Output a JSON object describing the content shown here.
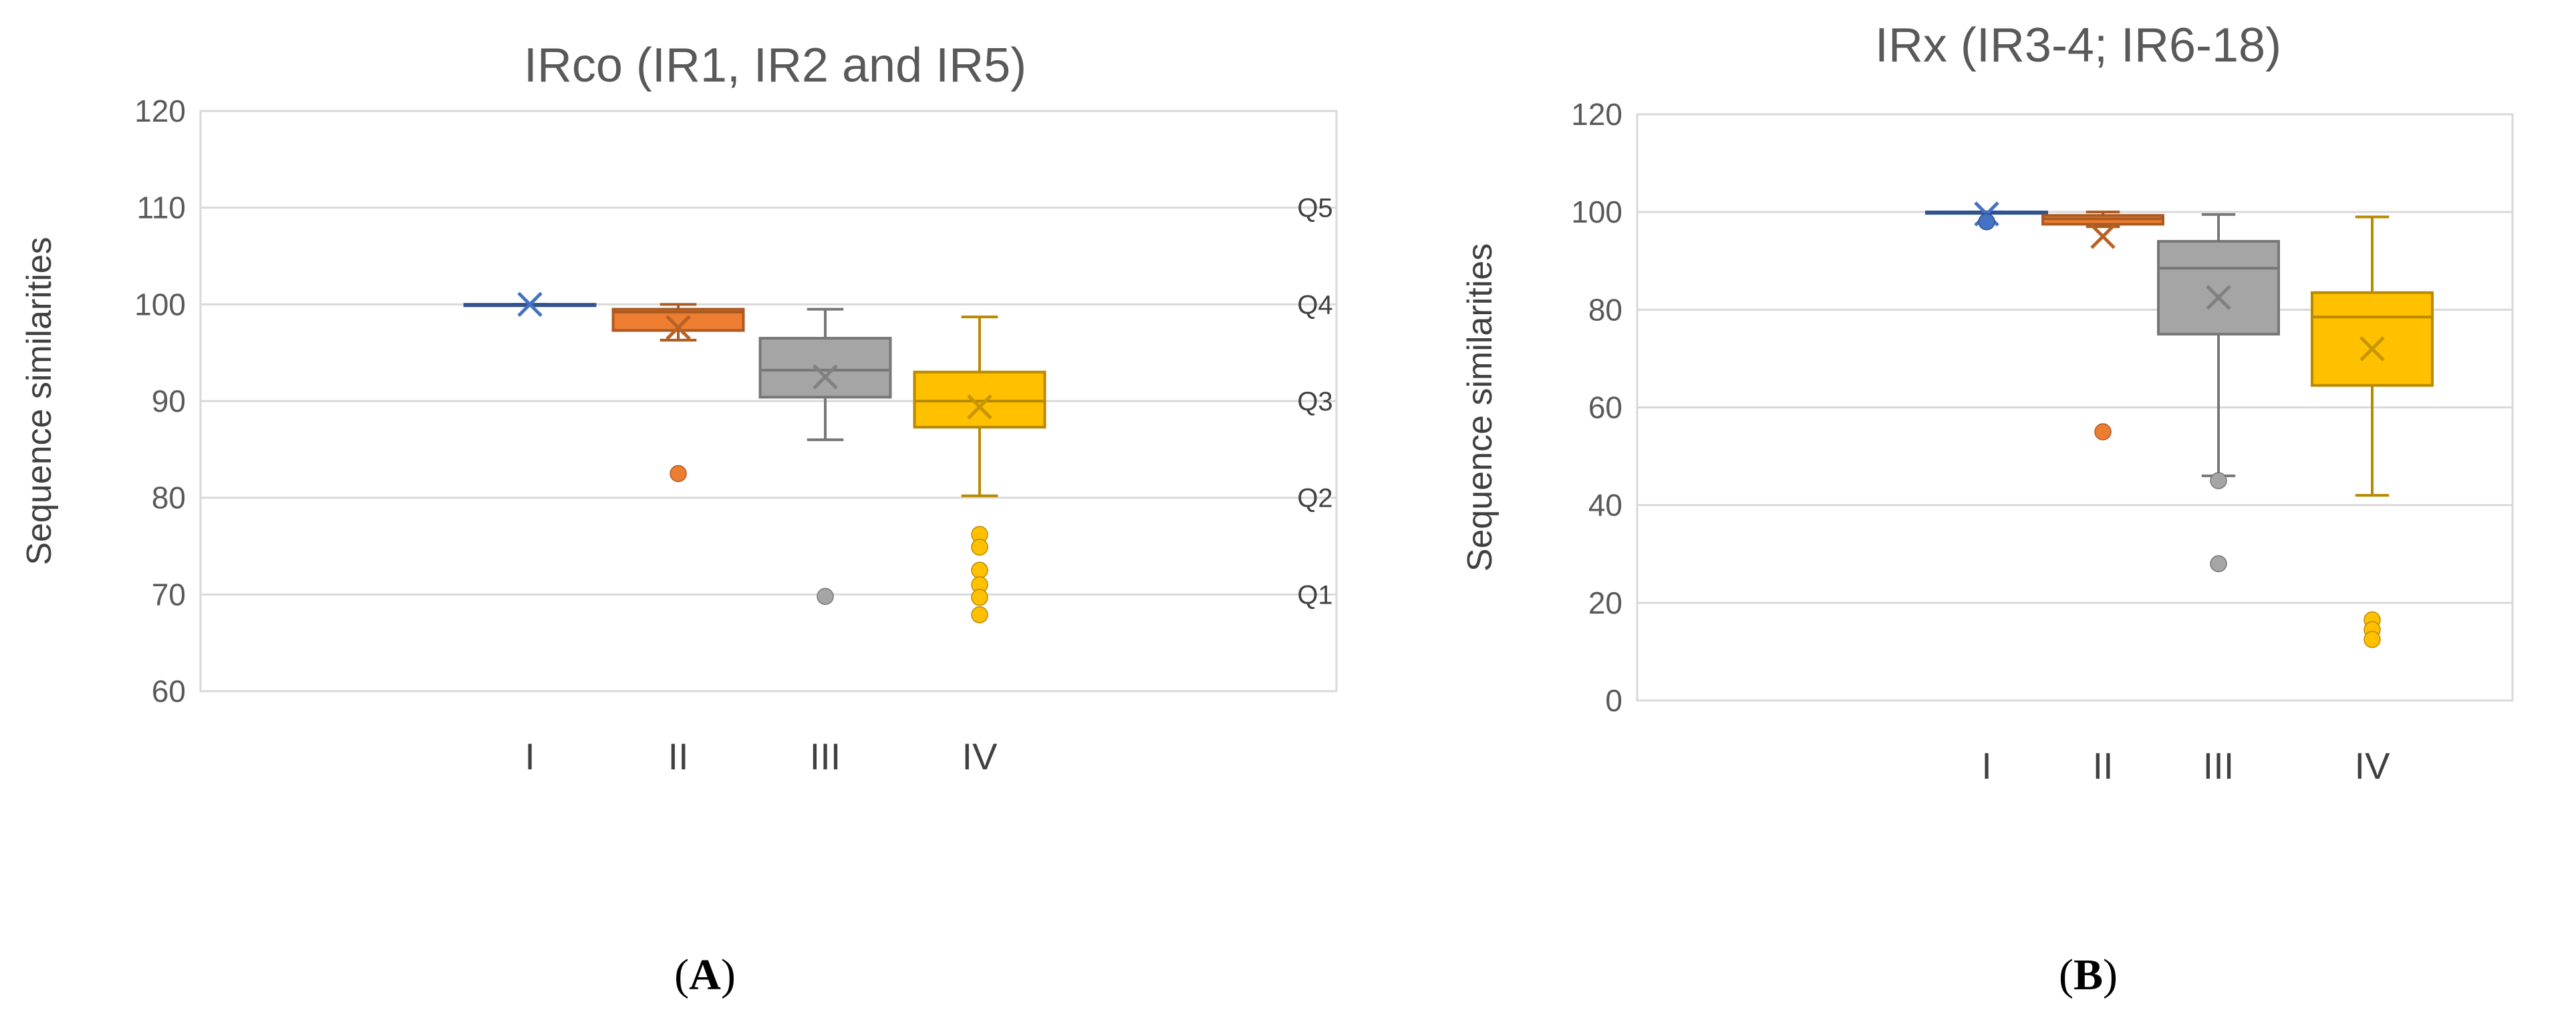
{
  "chart_data": [
    {
      "type": "boxplot",
      "title": "IRco (IR1, IR2 and IR5)",
      "ylabel": "Sequence similarities",
      "xlabel": "",
      "ylim": [
        60,
        120
      ],
      "yticks": [
        60,
        70,
        80,
        90,
        100,
        110,
        120
      ],
      "grid": true,
      "panel_label": "A",
      "categories": [
        "I",
        "II",
        "III",
        "IV"
      ],
      "reference_labels": [
        {
          "label": "Q5",
          "value": 110
        },
        {
          "label": "Q4",
          "value": 100
        },
        {
          "label": "Q3",
          "value": 90
        },
        {
          "label": "Q2",
          "value": 80
        },
        {
          "label": "Q1",
          "value": 70
        }
      ],
      "series": [
        {
          "name": "I",
          "color": "#4472c4",
          "min": 100,
          "q1": 100,
          "median": 100,
          "q3": 100,
          "max": 100,
          "mean": 100,
          "outliers": []
        },
        {
          "name": "II",
          "color": "#ed7d31",
          "min": 96.3,
          "q1": 97.3,
          "median": 99.2,
          "q3": 99.5,
          "max": 100,
          "mean": 97.6,
          "outliers": [
            82.5
          ]
        },
        {
          "name": "III",
          "color": "#a5a5a5",
          "min": 86,
          "q1": 90.4,
          "median": 93.2,
          "q3": 96.5,
          "max": 99.5,
          "mean": 92.5,
          "outliers": [
            69.8
          ]
        },
        {
          "name": "IV",
          "color": "#ffc000",
          "min": 80.2,
          "q1": 87.3,
          "median": 90,
          "q3": 93,
          "max": 98.7,
          "mean": 89.4,
          "outliers": [
            76.2,
            74.9,
            72.5,
            71,
            69.7,
            67.9
          ]
        }
      ]
    },
    {
      "type": "boxplot",
      "title": "IRx (IR3-4; IR6-18)",
      "ylabel": "Sequence similarities",
      "xlabel": "",
      "ylim": [
        0,
        120
      ],
      "yticks": [
        0,
        20,
        40,
        60,
        80,
        100,
        120
      ],
      "grid": true,
      "panel_label": "B",
      "categories": [
        "I",
        "II",
        "III",
        "IV"
      ],
      "reference_labels": [],
      "series": [
        {
          "name": "I",
          "color": "#4472c4",
          "min": 100,
          "q1": 100,
          "median": 100,
          "q3": 100,
          "max": 100,
          "mean": 99.6,
          "outliers": [
            98
          ]
        },
        {
          "name": "II",
          "color": "#ed7d31",
          "min": 97,
          "q1": 97.5,
          "median": 98.6,
          "q3": 99.3,
          "max": 100,
          "mean": 95,
          "outliers": [
            55
          ]
        },
        {
          "name": "III",
          "color": "#a5a5a5",
          "min": 46,
          "q1": 75,
          "median": 88.5,
          "q3": 94,
          "max": 99.5,
          "mean": 82.5,
          "outliers": [
            45,
            28
          ]
        },
        {
          "name": "IV",
          "color": "#ffc000",
          "min": 42,
          "q1": 64.5,
          "median": 78.5,
          "q3": 83.5,
          "max": 99,
          "mean": 72,
          "outliers": [
            16.5,
            14.5,
            12.5
          ]
        }
      ]
    }
  ]
}
